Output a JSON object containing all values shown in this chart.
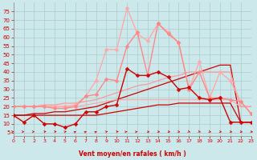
{
  "background_color": "#cce8ea",
  "grid_color": "#aacccc",
  "xlabel": "Vent moyen/en rafales ( km/h )",
  "xlabel_color": "#cc0000",
  "xticks": [
    0,
    1,
    2,
    3,
    4,
    5,
    6,
    7,
    8,
    9,
    10,
    11,
    12,
    13,
    14,
    15,
    16,
    17,
    18,
    19,
    20,
    21,
    22,
    23
  ],
  "yticks": [
    5,
    10,
    15,
    20,
    25,
    30,
    35,
    40,
    45,
    50,
    55,
    60,
    65,
    70,
    75
  ],
  "ylim": [
    3,
    80
  ],
  "xlim": [
    0,
    23
  ],
  "tick_color": "#cc0000",
  "series": [
    {
      "comment": "dark red line with diamond markers - low curve",
      "x": [
        0,
        1,
        2,
        3,
        4,
        5,
        6,
        7,
        8,
        9,
        10,
        11,
        12,
        13,
        14,
        15,
        16,
        17,
        18,
        19,
        20,
        21,
        22,
        23
      ],
      "y": [
        15,
        11,
        15,
        10,
        10,
        8,
        10,
        17,
        17,
        20,
        21,
        42,
        38,
        38,
        40,
        37,
        30,
        31,
        25,
        24,
        25,
        11,
        11,
        11
      ],
      "color": "#cc0000",
      "marker": "D",
      "markersize": 2.5,
      "linewidth": 1.0,
      "zorder": 5
    },
    {
      "comment": "medium pink line with diamond markers",
      "x": [
        0,
        1,
        2,
        3,
        4,
        5,
        6,
        7,
        8,
        9,
        10,
        11,
        12,
        13,
        14,
        15,
        16,
        17,
        18,
        19,
        20,
        21,
        22,
        23
      ],
      "y": [
        20,
        20,
        20,
        20,
        19,
        19,
        20,
        26,
        27,
        36,
        35,
        55,
        63,
        38,
        68,
        62,
        57,
        30,
        40,
        25,
        25,
        24,
        23,
        16
      ],
      "color": "#ff8888",
      "marker": "D",
      "markersize": 2.5,
      "linewidth": 1.0,
      "zorder": 4
    },
    {
      "comment": "light pink line with diamond markers - highest curve",
      "x": [
        0,
        1,
        2,
        3,
        4,
        5,
        6,
        7,
        8,
        9,
        10,
        11,
        12,
        13,
        14,
        15,
        16,
        17,
        18,
        19,
        20,
        21,
        22,
        23
      ],
      "y": [
        20,
        20,
        20,
        20,
        20,
        20,
        21,
        26,
        35,
        53,
        53,
        77,
        62,
        58,
        68,
        63,
        57,
        30,
        46,
        25,
        40,
        35,
        23,
        16
      ],
      "color": "#ffaaaa",
      "marker": "D",
      "markersize": 2.5,
      "linewidth": 1.0,
      "zorder": 3
    },
    {
      "comment": "dark red straight rising line - no markers",
      "x": [
        0,
        1,
        2,
        3,
        4,
        5,
        6,
        7,
        8,
        9,
        10,
        11,
        12,
        13,
        14,
        15,
        16,
        17,
        18,
        19,
        20,
        21,
        22,
        23
      ],
      "y": [
        15,
        15,
        16,
        16,
        17,
        17,
        18,
        19,
        20,
        22,
        24,
        26,
        28,
        30,
        32,
        34,
        36,
        38,
        40,
        42,
        44,
        44,
        11,
        11
      ],
      "color": "#cc0000",
      "marker": null,
      "markersize": 0,
      "linewidth": 0.9,
      "zorder": 2
    },
    {
      "comment": "dark red nearly flat line - no markers",
      "x": [
        0,
        1,
        2,
        3,
        4,
        5,
        6,
        7,
        8,
        9,
        10,
        11,
        12,
        13,
        14,
        15,
        16,
        17,
        18,
        19,
        20,
        21,
        22,
        23
      ],
      "y": [
        15,
        15,
        15,
        15,
        15,
        15,
        15,
        15,
        15,
        16,
        17,
        18,
        19,
        20,
        21,
        21,
        22,
        22,
        22,
        22,
        22,
        22,
        11,
        11
      ],
      "color": "#cc0000",
      "marker": null,
      "markersize": 0,
      "linewidth": 0.9,
      "zorder": 2
    },
    {
      "comment": "pink nearly flat line - no markers",
      "x": [
        0,
        1,
        2,
        3,
        4,
        5,
        6,
        7,
        8,
        9,
        10,
        11,
        12,
        13,
        14,
        15,
        16,
        17,
        18,
        19,
        20,
        21,
        22,
        23
      ],
      "y": [
        20,
        20,
        20,
        20,
        20,
        20,
        20,
        21,
        22,
        23,
        24,
        24,
        24,
        24,
        24,
        24,
        24,
        24,
        24,
        24,
        24,
        24,
        20,
        20
      ],
      "color": "#ffaaaa",
      "marker": null,
      "markersize": 0,
      "linewidth": 0.9,
      "zorder": 2
    },
    {
      "comment": "pink gently rising line - no markers",
      "x": [
        0,
        1,
        2,
        3,
        4,
        5,
        6,
        7,
        8,
        9,
        10,
        11,
        12,
        13,
        14,
        15,
        16,
        17,
        18,
        19,
        20,
        21,
        22,
        23
      ],
      "y": [
        20,
        20,
        20,
        21,
        21,
        22,
        22,
        23,
        24,
        26,
        28,
        30,
        32,
        33,
        35,
        37,
        38,
        40,
        40,
        40,
        40,
        40,
        20,
        20
      ],
      "color": "#ff9999",
      "marker": null,
      "markersize": 0,
      "linewidth": 0.9,
      "zorder": 2
    }
  ],
  "arrows": {
    "y_data": 5.5,
    "color": "#cc0000",
    "angles_deg": [
      0,
      0,
      0,
      45,
      45,
      60,
      70,
      70,
      70,
      60,
      45,
      30,
      30,
      315,
      315,
      315,
      300,
      295,
      295,
      300,
      310,
      315,
      315,
      315
    ]
  }
}
